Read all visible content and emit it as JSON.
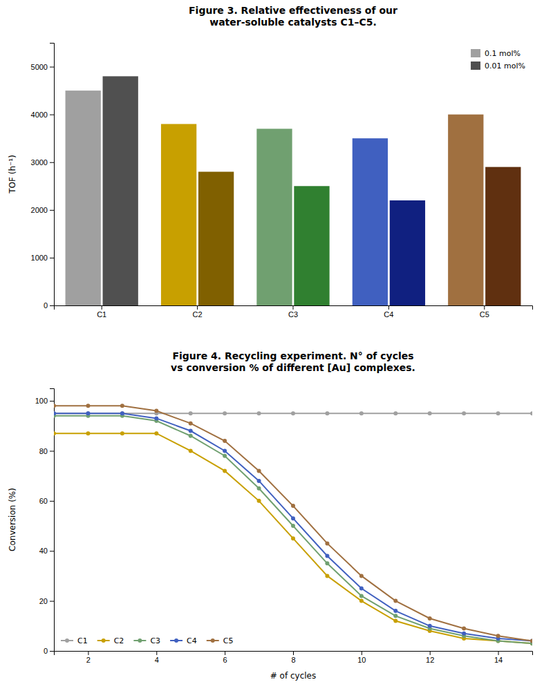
{
  "chart_data": [
    {
      "type": "bar",
      "title": "Figure 3. Relative effectiveness of our\nwater-soluble catalysts C1–C5.",
      "y_label": "TOF (h⁻¹)",
      "categories": [
        "C1",
        "C2",
        "C3",
        "C4",
        "C5"
      ],
      "series": [
        {
          "name": "0.1 mol%",
          "color": "#A0A0A0",
          "colors": [
            "#A0A0A0",
            "#C8A000",
            "#70A070",
            "#4060C0",
            "#A07040"
          ],
          "values": [
            4500,
            3800,
            3700,
            3500,
            4000
          ]
        },
        {
          "name": "0.01 mol%",
          "color": "#505050",
          "colors": [
            "#505050",
            "#806000",
            "#308030",
            "#102080",
            "#603010"
          ],
          "values": [
            4800,
            2800,
            2500,
            2200,
            2900
          ]
        }
      ],
      "ylim": [
        0,
        5500
      ],
      "yticks": [
        0,
        1000,
        2000,
        3000,
        4000,
        5000
      ],
      "legend": "upper right",
      "grid": false
    },
    {
      "type": "line",
      "title": "Figure 4. Recycling experiment. N° of cycles\nvs conversion % of different [Au] complexes.",
      "x_label": "# of cycles",
      "y_label": "Conversion (%)",
      "x": [
        1,
        2,
        3,
        4,
        5,
        6,
        7,
        8,
        9,
        10,
        11,
        12,
        13,
        14,
        15
      ],
      "series": [
        {
          "name": "C1",
          "color": "#A0A0A0",
          "marker": "circle",
          "values": [
            95,
            95,
            95,
            95,
            95,
            95,
            95,
            95,
            95,
            95,
            95,
            95,
            95,
            95,
            95
          ]
        },
        {
          "name": "C2",
          "color": "#C8A000",
          "marker": "circle",
          "values": [
            87,
            87,
            87,
            87,
            80,
            72,
            60,
            45,
            30,
            20,
            12,
            8,
            5,
            4,
            3
          ]
        },
        {
          "name": "C3",
          "color": "#70A070",
          "marker": "circle",
          "values": [
            94,
            94,
            94,
            92,
            86,
            78,
            65,
            50,
            35,
            22,
            14,
            9,
            6,
            4,
            3
          ]
        },
        {
          "name": "C4",
          "color": "#4060C0",
          "marker": "circle",
          "values": [
            95,
            95,
            95,
            93,
            88,
            80,
            68,
            53,
            38,
            25,
            16,
            10,
            7,
            5,
            4
          ]
        },
        {
          "name": "C5",
          "color": "#A07040",
          "marker": "circle",
          "values": [
            98,
            98,
            98,
            96,
            91,
            84,
            72,
            58,
            43,
            30,
            20,
            13,
            9,
            6,
            4
          ]
        }
      ],
      "xlim": [
        1,
        15
      ],
      "xticks": [
        2,
        4,
        6,
        8,
        10,
        12,
        14
      ],
      "ylim": [
        0,
        105
      ],
      "yticks": [
        0,
        20,
        40,
        60,
        80,
        100
      ],
      "legend": "lower left",
      "grid": false
    }
  ]
}
